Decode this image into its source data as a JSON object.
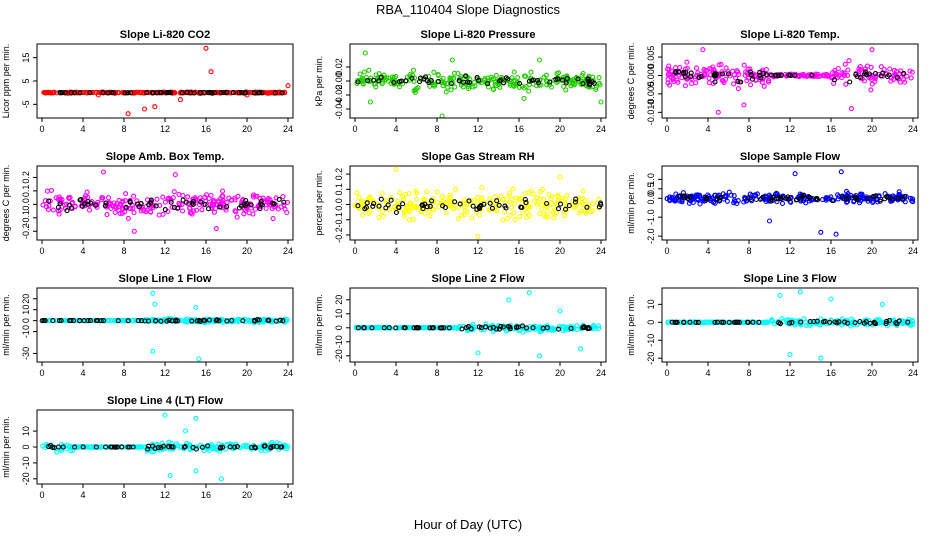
{
  "title": "RBA_110404  Slope Diagnostics",
  "xlabel": "Hour of Day (UTC)",
  "colors": {
    "red": "#ff0000",
    "green": "#22cc00",
    "magenta": "#ff00ff",
    "yellow": "#ffff00",
    "blue": "#0000ff",
    "cyan": "#00ffff",
    "black": "#000000"
  },
  "chart_data": [
    {
      "type": "scatter",
      "title": "Slope Li-820 CO2",
      "ylabel": "Licor ppm per min.",
      "xlim": [
        0,
        24
      ],
      "xticks": [
        "0",
        "4",
        "8",
        "12",
        "16",
        "20",
        "24"
      ],
      "ylim": [
        -10,
        20
      ],
      "yticks": [
        "-5",
        "5",
        "15"
      ],
      "yvals": [
        -5,
        5,
        15
      ],
      "grid": false,
      "color": "red",
      "series_note": "flag",
      "pattern": {
        "base": 0,
        "spread": 0.3,
        "outliers": [
          [
            8.4,
            -9
          ],
          [
            10,
            -7
          ],
          [
            11,
            -6
          ],
          [
            13.5,
            -3
          ],
          [
            16,
            19
          ],
          [
            16.5,
            9
          ],
          [
            20,
            -1
          ],
          [
            24,
            3
          ],
          [
            5.5,
            -1
          ]
        ]
      }
    },
    {
      "type": "scatter",
      "title": "Slope Li-820 Pressure",
      "ylabel": "kPa per min.",
      "xlim": [
        0,
        24
      ],
      "xticks": [
        "0",
        "4",
        "8",
        "12",
        "16",
        "20",
        "24"
      ],
      "ylim": [
        -0.05,
        0.05
      ],
      "yticks": [
        "-0.04",
        "-0.02",
        "0.00",
        "0.02"
      ],
      "yvals": [
        -0.04,
        -0.02,
        0,
        0.02
      ],
      "grid": false,
      "color": "green",
      "pattern": {
        "base": 0,
        "spread": 0.015,
        "outliers": [
          [
            1,
            0.04
          ],
          [
            8.5,
            -0.05
          ],
          [
            1.5,
            -0.03
          ],
          [
            9.5,
            0.03
          ],
          [
            16.5,
            -0.025
          ],
          [
            24,
            -0.03
          ],
          [
            18,
            0.03
          ]
        ]
      }
    },
    {
      "type": "scatter",
      "title": "Slope Li-820 Temp.",
      "ylabel": "degrees C per min.",
      "xlim": [
        0,
        24
      ],
      "xticks": [
        "0",
        "4",
        "8",
        "12",
        "16",
        "20",
        "24"
      ],
      "ylim": [
        -0.011,
        0.008
      ],
      "yticks": [
        "-0.010",
        "-0.005",
        "0.000",
        "0.005"
      ],
      "yvals": [
        -0.01,
        -0.005,
        0,
        0.005
      ],
      "grid": false,
      "color": "magenta",
      "pattern": {
        "base": 0,
        "spread": 0.004,
        "quiet": [
          [
            10,
            16
          ]
        ],
        "outliers": [
          [
            3.5,
            0.007
          ],
          [
            5,
            -0.01
          ],
          [
            7.5,
            -0.008
          ],
          [
            18,
            -0.009
          ],
          [
            20,
            0.007
          ]
        ]
      }
    },
    {
      "type": "scatter",
      "title": "Slope Amb. Box Temp.",
      "ylabel": "degrees C per min.",
      "xlim": [
        0,
        24
      ],
      "xticks": [
        "0",
        "4",
        "8",
        "12",
        "16",
        "20",
        "24"
      ],
      "ylim": [
        -0.25,
        0.27
      ],
      "yticks": [
        "-0.2",
        "-0.1",
        "0.0",
        "0.1",
        "0.2"
      ],
      "yvals": [
        -0.2,
        -0.1,
        0,
        0.1,
        0.2
      ],
      "grid": false,
      "color": "magenta",
      "pattern": {
        "base": 0,
        "spread": 0.11,
        "outliers": [
          [
            6,
            0.24
          ],
          [
            9,
            -0.2
          ],
          [
            13,
            0.22
          ],
          [
            17,
            -0.18
          ]
        ]
      }
    },
    {
      "type": "scatter",
      "title": "Slope Gas Stream RH",
      "ylabel": "percent per min.",
      "xlim": [
        0,
        24
      ],
      "xticks": [
        "0",
        "4",
        "8",
        "12",
        "16",
        "20",
        "24"
      ],
      "ylim": [
        -0.22,
        0.24
      ],
      "yticks": [
        "-0.2",
        "-0.1",
        "0.0",
        "0.1",
        "0.2"
      ],
      "yvals": [
        -0.2,
        -0.1,
        0,
        0.1,
        0.2
      ],
      "grid": false,
      "color": "yellow",
      "pattern": {
        "base": 0,
        "spread": 0.11,
        "outliers": [
          [
            4,
            0.23
          ],
          [
            12,
            -0.21
          ],
          [
            20,
            0.18
          ]
        ]
      }
    },
    {
      "type": "scatter",
      "title": "Slope Sample Flow",
      "ylabel": "ml/min per min.",
      "xlim": [
        0,
        24
      ],
      "xticks": [
        "0",
        "4",
        "8",
        "12",
        "16",
        "20",
        "24"
      ],
      "ylim": [
        -2.1,
        1.6
      ],
      "yticks": [
        "-2.0",
        "-1.0",
        "0.0",
        "0.5",
        "1.0"
      ],
      "yvals": [
        -2,
        -1,
        0,
        0.5,
        1
      ],
      "grid": false,
      "color": "blue",
      "pattern": {
        "base": 0,
        "spread": 0.35,
        "outliers": [
          [
            12.5,
            1.3
          ],
          [
            15,
            -1.8
          ],
          [
            17,
            1.4
          ],
          [
            16.5,
            -1.9
          ],
          [
            10,
            -1.2
          ]
        ]
      }
    },
    {
      "type": "scatter",
      "title": "Slope Line 1 Flow",
      "ylabel": "ml/min per min.",
      "xlim": [
        0,
        24
      ],
      "xticks": [
        "0",
        "4",
        "8",
        "12",
        "16",
        "20",
        "24"
      ],
      "ylim": [
        -36,
        28
      ],
      "yticks": [
        "-30",
        "-10",
        "0",
        "10",
        "20"
      ],
      "yvals": [
        -30,
        -10,
        0,
        10,
        20
      ],
      "grid": false,
      "color": "cyan",
      "pattern": {
        "base": 0,
        "spread": 2,
        "quiet": [
          [
            0,
            10
          ]
        ],
        "outliers": [
          [
            10.8,
            25
          ],
          [
            10.8,
            -28
          ],
          [
            15.3,
            -35
          ],
          [
            11,
            15
          ],
          [
            15,
            12
          ]
        ]
      }
    },
    {
      "type": "scatter",
      "title": "Slope Line 2 Flow",
      "ylabel": "ml/min per min.",
      "xlim": [
        0,
        24
      ],
      "xticks": [
        "0",
        "4",
        "8",
        "12",
        "16",
        "20",
        "24"
      ],
      "ylim": [
        -23,
        27
      ],
      "yticks": [
        "-20",
        "-10",
        "0",
        "10",
        "20"
      ],
      "yvals": [
        -20,
        -10,
        0,
        10,
        20
      ],
      "grid": false,
      "color": "cyan",
      "pattern": {
        "base": 0,
        "spread": 3,
        "quiet": [
          [
            0,
            10
          ]
        ],
        "outliers": [
          [
            15,
            20
          ],
          [
            17,
            25
          ],
          [
            18,
            -20
          ],
          [
            12,
            -18
          ],
          [
            22,
            -15
          ],
          [
            20,
            12
          ]
        ]
      }
    },
    {
      "type": "scatter",
      "title": "Slope Line 3 Flow",
      "ylabel": "ml/min per min.",
      "xlim": [
        0,
        24
      ],
      "xticks": [
        "0",
        "4",
        "8",
        "12",
        "16",
        "20",
        "24"
      ],
      "ylim": [
        -21,
        18
      ],
      "yticks": [
        "-20",
        "-10",
        "0",
        "10"
      ],
      "yvals": [
        -20,
        -10,
        0,
        10
      ],
      "grid": false,
      "color": "cyan",
      "pattern": {
        "base": 0,
        "spread": 2.5,
        "quiet": [
          [
            0,
            10
          ]
        ],
        "outliers": [
          [
            11,
            15
          ],
          [
            13,
            17
          ],
          [
            15,
            -20
          ],
          [
            12,
            -18
          ],
          [
            16,
            13
          ],
          [
            21,
            10
          ]
        ]
      }
    },
    {
      "type": "scatter",
      "title": "Slope Line 4 (LT) Flow",
      "ylabel": "ml/min per min.",
      "xlim": [
        0,
        24
      ],
      "xticks": [
        "0",
        "4",
        "8",
        "12",
        "16",
        "20",
        "24"
      ],
      "ylim": [
        -22,
        22
      ],
      "yticks": [
        "-20",
        "-10",
        "0",
        "10"
      ],
      "yvals": [
        -20,
        -10,
        0,
        10
      ],
      "grid": false,
      "color": "cyan",
      "pattern": {
        "base": 0,
        "spread": 3,
        "quiet": [
          [
            3,
            10
          ]
        ],
        "outliers": [
          [
            12,
            20
          ],
          [
            15,
            18
          ],
          [
            12.5,
            -18
          ],
          [
            17.5,
            -20
          ],
          [
            15,
            -15
          ],
          [
            14,
            10
          ]
        ]
      }
    }
  ]
}
